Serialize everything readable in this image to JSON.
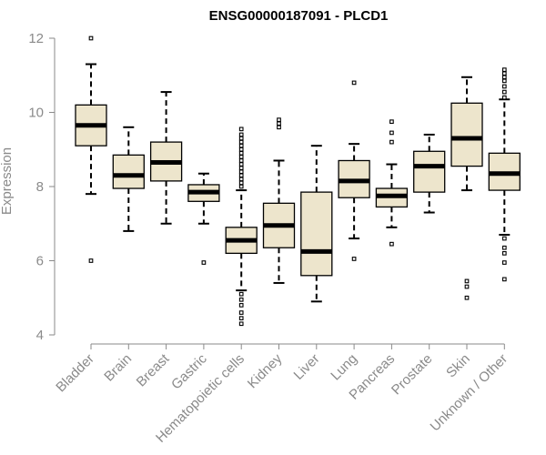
{
  "chart_data": {
    "type": "boxplot",
    "title": "ENSG00000187091 - PLCD1",
    "xlabel": "",
    "ylabel": "Expression",
    "ylim": [
      4,
      12
    ],
    "yticks": [
      "4",
      "6",
      "8",
      "10",
      "12"
    ],
    "box_fill": "#ede5cc",
    "categories": [
      "Bladder",
      "Brain",
      "Breast",
      "Gastric",
      "Hematopoietic cells",
      "Kidney",
      "Liver",
      "Lung",
      "Pancreas",
      "Prostate",
      "Skin",
      "Unknown / Other"
    ],
    "boxes": [
      {
        "category": "Bladder",
        "whisker_low": 7.8,
        "q1": 9.1,
        "median": 9.65,
        "q3": 10.2,
        "whisker_high": 11.3,
        "outliers": [
          12.0,
          6.0
        ]
      },
      {
        "category": "Brain",
        "whisker_low": 6.8,
        "q1": 7.95,
        "median": 8.3,
        "q3": 8.85,
        "whisker_high": 9.6,
        "outliers": []
      },
      {
        "category": "Breast",
        "whisker_low": 7.0,
        "q1": 8.15,
        "median": 8.65,
        "q3": 9.2,
        "whisker_high": 10.55,
        "outliers": []
      },
      {
        "category": "Gastric",
        "whisker_low": 7.0,
        "q1": 7.6,
        "median": 7.85,
        "q3": 8.05,
        "whisker_high": 8.35,
        "outliers": [
          5.95
        ]
      },
      {
        "category": "Hematopoietic cells",
        "whisker_low": 5.2,
        "q1": 6.2,
        "median": 6.55,
        "q3": 6.9,
        "whisker_high": 7.9,
        "outliers": [
          8.0,
          8.1,
          8.2,
          8.3,
          8.4,
          8.5,
          8.6,
          8.7,
          8.8,
          8.9,
          9.0,
          9.1,
          9.2,
          9.3,
          9.4,
          9.55,
          5.1,
          4.95,
          4.8,
          4.6,
          4.45,
          4.3
        ]
      },
      {
        "category": "Kidney",
        "whisker_low": 5.4,
        "q1": 6.35,
        "median": 6.95,
        "q3": 7.55,
        "whisker_high": 8.7,
        "outliers": [
          9.6,
          9.7,
          9.8
        ]
      },
      {
        "category": "Liver",
        "whisker_low": 4.9,
        "q1": 5.6,
        "median": 6.25,
        "q3": 7.85,
        "whisker_high": 9.1,
        "outliers": []
      },
      {
        "category": "Lung",
        "whisker_low": 6.6,
        "q1": 7.7,
        "median": 8.15,
        "q3": 8.7,
        "whisker_high": 9.15,
        "outliers": [
          10.8,
          6.05
        ]
      },
      {
        "category": "Pancreas",
        "whisker_low": 6.9,
        "q1": 7.45,
        "median": 7.75,
        "q3": 7.95,
        "whisker_high": 8.6,
        "outliers": [
          9.75,
          9.45,
          9.2,
          6.45
        ]
      },
      {
        "category": "Prostate",
        "whisker_low": 7.3,
        "q1": 7.85,
        "median": 8.55,
        "q3": 8.95,
        "whisker_high": 9.4,
        "outliers": []
      },
      {
        "category": "Skin",
        "whisker_low": 7.9,
        "q1": 8.55,
        "median": 9.3,
        "q3": 10.25,
        "whisker_high": 10.95,
        "outliers": [
          5.45,
          5.3,
          5.0
        ]
      },
      {
        "category": "Unknown / Other",
        "whisker_low": 6.7,
        "q1": 7.9,
        "median": 8.35,
        "q3": 8.9,
        "whisker_high": 10.35,
        "outliers": [
          11.15,
          11.05,
          10.95,
          10.85,
          10.7,
          10.55,
          10.4,
          6.6,
          6.35,
          6.2,
          5.95,
          5.5
        ]
      }
    ]
  }
}
